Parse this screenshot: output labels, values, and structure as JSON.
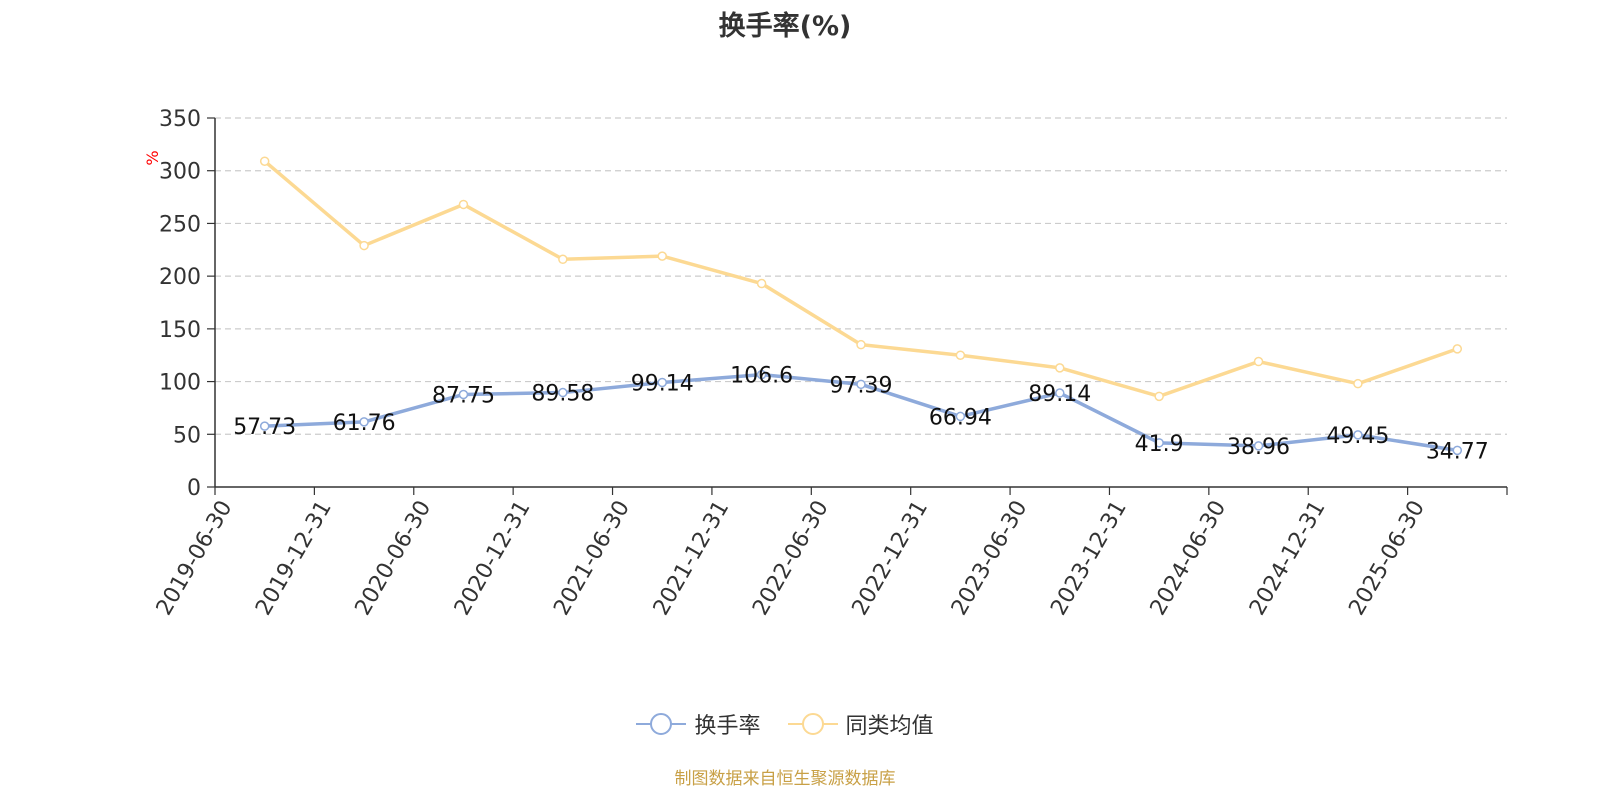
{
  "title": "换手率(%)",
  "source_note": "制图数据来自恒生聚源数据库",
  "chart_data": {
    "type": "line",
    "title": "换手率(%)",
    "ylabel": "%",
    "ylim": [
      0,
      350
    ],
    "yticks": [
      0,
      50,
      100,
      150,
      200,
      250,
      300,
      350
    ],
    "grid": true,
    "legend_position": "bottom",
    "categories": [
      "2019-06-30",
      "2019-12-31",
      "2020-06-30",
      "2020-12-31",
      "2021-06-30",
      "2021-12-31",
      "2022-06-30",
      "2022-12-31",
      "2023-06-30",
      "2023-12-31",
      "2024-06-30",
      "2024-12-31",
      "2025-06-30"
    ],
    "series": [
      {
        "name": "换手率",
        "color": "#8eaadb",
        "show_labels": true,
        "values": [
          57.73,
          61.76,
          87.75,
          89.58,
          99.14,
          106.6,
          97.39,
          66.94,
          89.14,
          41.9,
          38.96,
          49.45,
          34.77
        ]
      },
      {
        "name": "同类均值",
        "color": "#fcd993",
        "show_labels": false,
        "values": [
          309,
          229,
          268,
          216,
          219,
          193,
          135,
          125,
          113,
          86,
          119,
          98,
          131
        ]
      }
    ]
  }
}
